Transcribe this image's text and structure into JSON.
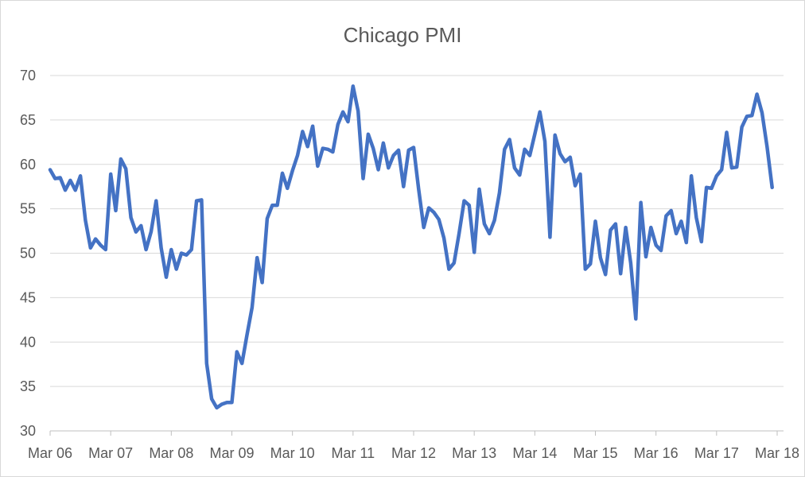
{
  "chart_data": {
    "type": "line",
    "title": "Chicago PMI",
    "xlabel": "",
    "ylabel": "",
    "ylim": [
      30,
      70
    ],
    "y_ticks": [
      30,
      35,
      40,
      45,
      50,
      55,
      60,
      65,
      70
    ],
    "x_tick_labels": [
      "Mar 06",
      "Mar 07",
      "Mar 08",
      "Mar 09",
      "Mar 10",
      "Mar 11",
      "Mar 12",
      "Mar 13",
      "Mar 14",
      "Mar 15",
      "Mar 16",
      "Mar 17",
      "Mar 18"
    ],
    "grid": "horizontal",
    "legend": "none",
    "line_color": "#4472C4",
    "series": [
      {
        "start": "2006-03",
        "frequency": "monthly",
        "values": [
          59.4,
          58.4,
          58.5,
          57.1,
          58.2,
          57.1,
          58.7,
          53.7,
          50.6,
          51.6,
          50.9,
          50.4,
          58.9,
          54.8,
          60.6,
          59.5,
          54.0,
          52.4,
          53.1,
          50.4,
          52.4,
          55.9,
          50.6,
          47.3,
          50.4,
          48.2,
          50.0,
          49.8,
          50.4,
          55.9,
          56.0,
          37.6,
          33.6,
          32.6,
          33.0,
          33.2,
          33.2,
          38.9,
          37.6,
          40.8,
          43.9,
          49.5,
          46.7,
          53.9,
          55.4,
          55.4,
          59.0,
          57.3,
          59.3,
          61.0,
          63.7,
          62.0,
          64.3,
          59.8,
          61.8,
          61.7,
          61.4,
          64.5,
          65.9,
          64.8,
          68.8,
          66.0,
          58.4,
          63.4,
          61.8,
          59.4,
          62.4,
          59.6,
          61.0,
          61.6,
          57.5,
          61.6,
          61.9,
          57.2,
          52.9,
          55.1,
          54.6,
          53.8,
          51.7,
          48.2,
          48.9,
          52.2,
          55.9,
          55.4,
          50.1,
          57.2,
          53.3,
          52.2,
          53.7,
          56.8,
          61.7,
          62.8,
          59.6,
          58.8,
          61.7,
          61.0,
          63.4,
          65.9,
          62.6,
          51.8,
          63.3,
          61.2,
          60.3,
          60.8,
          57.6,
          58.9,
          48.2,
          48.8,
          53.6,
          49.5,
          47.6,
          52.6,
          53.3,
          47.7,
          52.9,
          48.9,
          42.6,
          55.7,
          49.6,
          52.9,
          50.9,
          50.3,
          54.2,
          54.8,
          52.2,
          53.6,
          51.2,
          58.7,
          54.0,
          51.3,
          57.4,
          57.3,
          58.7,
          59.4,
          63.6,
          59.6,
          59.7,
          64.2,
          65.4,
          65.5,
          67.9,
          65.8,
          62.0,
          57.4
        ]
      }
    ]
  }
}
